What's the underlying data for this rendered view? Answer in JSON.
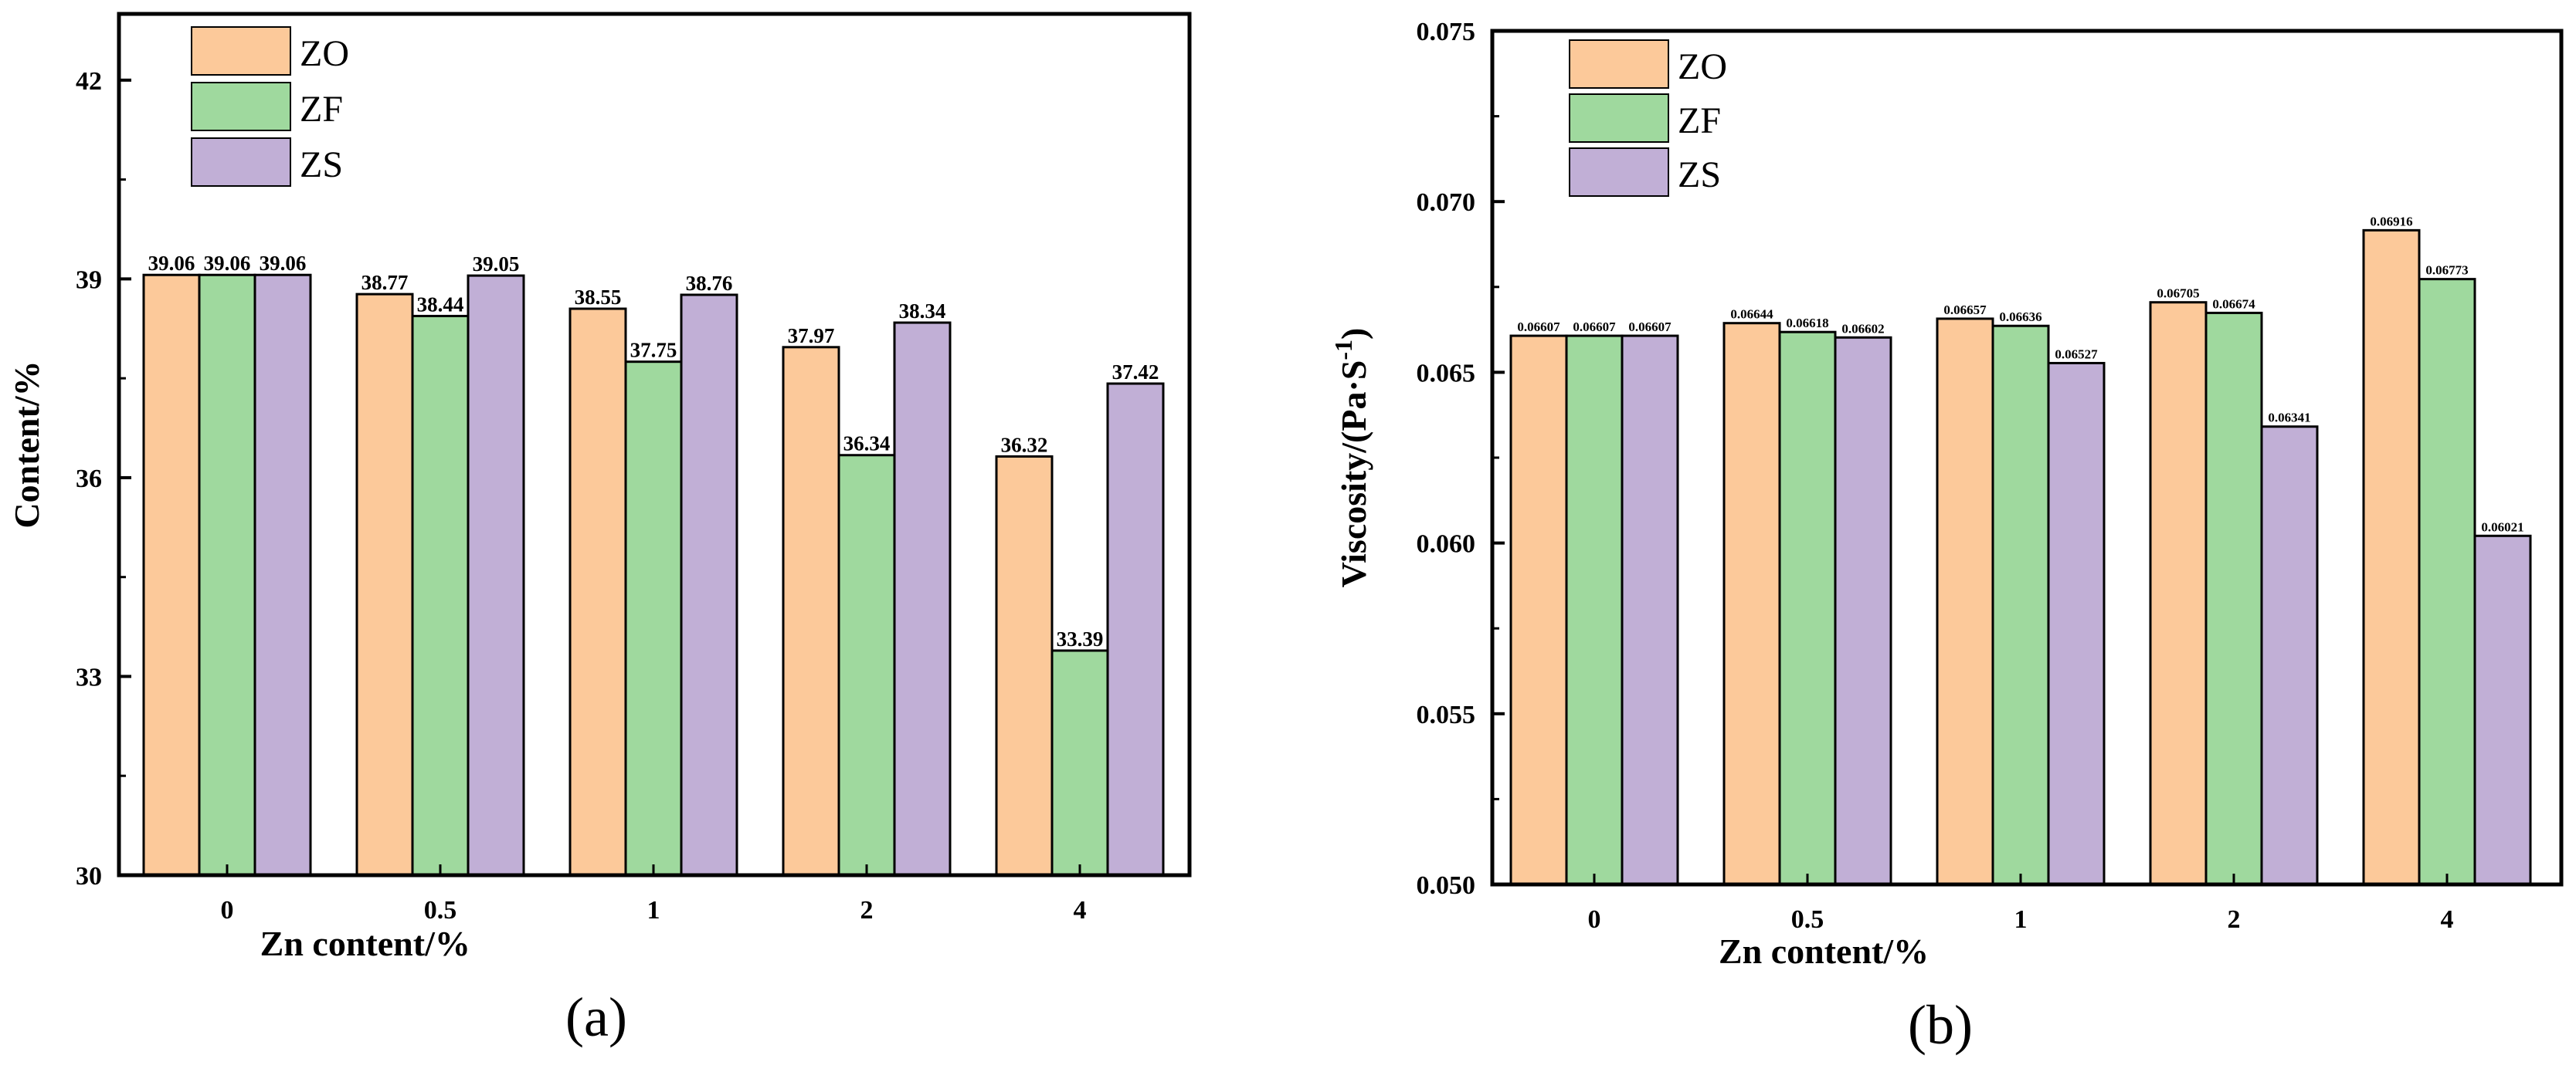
{
  "colors": {
    "ZO": "#FCC99A",
    "ZF": "#9FD99E",
    "ZS": "#C1AFD6",
    "axis": "#000000"
  },
  "chart_data": [
    {
      "type": "bar",
      "panel_label": "(a)",
      "title": "",
      "xlabel": "Zn content/%",
      "ylabel": "Content/%",
      "categories": [
        "0",
        "0.5",
        "1",
        "2",
        "4"
      ],
      "ylim": [
        30,
        43
      ],
      "yticks": [
        30,
        33,
        36,
        39,
        42
      ],
      "ytick_labels": [
        "30",
        "33",
        "36",
        "39",
        "42"
      ],
      "legend_position": "top-left",
      "series": [
        {
          "name": "ZO",
          "values": [
            39.06,
            38.77,
            38.55,
            37.97,
            36.32
          ],
          "labels": [
            "39.06",
            "38.77",
            "38.55",
            "37.97",
            "36.32"
          ]
        },
        {
          "name": "ZF",
          "values": [
            39.06,
            38.44,
            37.75,
            36.34,
            33.39
          ],
          "labels": [
            "39.06",
            "38.44",
            "37.75",
            "36.34",
            "33.39"
          ]
        },
        {
          "name": "ZS",
          "values": [
            39.06,
            39.05,
            38.76,
            38.34,
            37.42
          ],
          "labels": [
            "39.06",
            "39.05",
            "38.76",
            "38.34",
            "37.42"
          ]
        }
      ]
    },
    {
      "type": "bar",
      "panel_label": "(b)",
      "title": "",
      "xlabel": "Zn content/%",
      "ylabel": "Viscosity/(Pa·S",
      "ylabel_sup": "-1",
      "ylabel_end": ")",
      "categories": [
        "0",
        "0.5",
        "1",
        "2",
        "4"
      ],
      "ylim": [
        0.05,
        0.075
      ],
      "yticks": [
        0.05,
        0.055,
        0.06,
        0.065,
        0.07,
        0.075
      ],
      "ytick_labels": [
        "0.050",
        "0.055",
        "0.060",
        "0.065",
        "0.070",
        "0.075"
      ],
      "legend_position": "top-left",
      "series": [
        {
          "name": "ZO",
          "values": [
            0.06607,
            0.06644,
            0.06657,
            0.06705,
            0.06916
          ],
          "labels": [
            "0.06607",
            "0.06644",
            "0.06657",
            "0.06705",
            "0.06916"
          ]
        },
        {
          "name": "ZF",
          "values": [
            0.06607,
            0.06618,
            0.06636,
            0.06674,
            0.06773
          ],
          "labels": [
            "0.06607",
            "0.06618",
            "0.06636",
            "0.06674",
            "0.06773"
          ]
        },
        {
          "name": "ZS",
          "values": [
            0.06607,
            0.06602,
            0.06527,
            0.06341,
            0.06021
          ],
          "labels": [
            "0.06607",
            "0.06602",
            "0.06527",
            "0.06341",
            "0.06021"
          ]
        }
      ]
    }
  ]
}
